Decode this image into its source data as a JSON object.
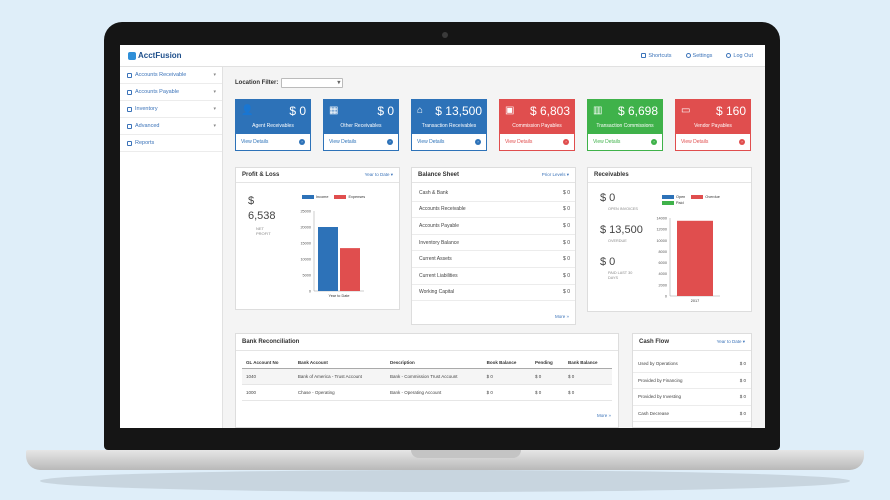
{
  "app": {
    "logo": "AcctFusion"
  },
  "topnav": [
    {
      "label": "Shortcuts",
      "icon": "shortcuts-icon"
    },
    {
      "label": "Settings",
      "icon": "gear-icon"
    },
    {
      "label": "Log Out",
      "icon": "logout-icon"
    }
  ],
  "sidebar": {
    "items": [
      {
        "label": "Accounts Receivable",
        "icon": "user-icon",
        "has_caret": true
      },
      {
        "label": "Accounts Payable",
        "icon": "building-icon",
        "has_caret": true
      },
      {
        "label": "Inventory",
        "icon": "box-icon",
        "has_caret": true
      },
      {
        "label": "Advanced",
        "icon": "document-icon",
        "has_caret": true
      },
      {
        "label": "Reports",
        "icon": "reports-icon",
        "has_caret": false
      }
    ]
  },
  "filter": {
    "label": "Location Filter:",
    "value": ""
  },
  "tiles": [
    {
      "amount": "$ 0",
      "label": "Agent Receivables",
      "link": "View Details",
      "color": "#2d72b8",
      "icon": "user-icon",
      "glyph": "👤"
    },
    {
      "amount": "$ 0",
      "label": "Other Receivables",
      "link": "View Details",
      "color": "#2d72b8",
      "icon": "grid-icon",
      "glyph": "▦"
    },
    {
      "amount": "$ 13,500",
      "label": "Transaction Receivables",
      "link": "View Details",
      "color": "#2d72b8",
      "icon": "home-icon",
      "glyph": "⌂"
    },
    {
      "amount": "$ 6,803",
      "label": "Commission Payables",
      "link": "View Details",
      "color": "#e04e4e",
      "icon": "money-icon",
      "glyph": "▣"
    },
    {
      "amount": "$ 6,698",
      "label": "Transaction Commissions",
      "link": "View Details",
      "color": "#3fb24a",
      "icon": "bank-icon",
      "glyph": "▥"
    },
    {
      "amount": "$ 160",
      "label": "Vendor Payables",
      "link": "View Details",
      "color": "#e04e4e",
      "icon": "card-icon",
      "glyph": "▭"
    }
  ],
  "profit_loss": {
    "title": "Profit & Loss",
    "period": "Year to Date ▾",
    "dollar": "$",
    "value": "6,538",
    "caption": "NET PROFIT",
    "legend": [
      {
        "name": "Income",
        "color": "#2d72b8"
      },
      {
        "name": "Expenses",
        "color": "#e04e4e"
      }
    ],
    "chart_data": {
      "type": "bar",
      "categories": [
        "Year to Date"
      ],
      "series": [
        {
          "name": "Income",
          "values": [
            20000
          ],
          "color": "#2d72b8"
        },
        {
          "name": "Expenses",
          "values": [
            13400
          ],
          "color": "#e04e4e"
        }
      ],
      "ylim": [
        0,
        25000
      ],
      "yticks": [
        "0",
        "5000",
        "10000",
        "15000",
        "20000",
        "25000"
      ]
    }
  },
  "balance_sheet": {
    "title": "Balance Sheet",
    "period": "Prior Levels ▾",
    "rows": [
      {
        "label": "Cash & Bank",
        "value": "$ 0"
      },
      {
        "label": "Accounts Receivable",
        "value": "$ 0"
      },
      {
        "label": "Accounts Payable",
        "value": "$ 0"
      },
      {
        "label": "Inventory Balance",
        "value": "$ 0"
      },
      {
        "label": "Current Assets",
        "value": "$ 0"
      },
      {
        "label": "Current Liabilities",
        "value": "$ 0"
      },
      {
        "label": "Working Capital",
        "value": "$ 0"
      }
    ],
    "more": "More »"
  },
  "receivables": {
    "title": "Receivables",
    "stats": [
      {
        "value": "$ 0",
        "caption": "OPEN INVOICES"
      },
      {
        "value": "$ 13,500",
        "caption": "OVERDUE"
      },
      {
        "value": "$ 0",
        "caption": "PAID LAST 30 DAYS"
      }
    ],
    "legend": [
      {
        "name": "Open",
        "color": "#2d72b8"
      },
      {
        "name": "Overdue",
        "color": "#e04e4e"
      },
      {
        "name": "Paid",
        "color": "#3fb24a"
      }
    ],
    "chart_data": {
      "type": "bar",
      "categories": [
        "2017"
      ],
      "series": [
        {
          "name": "Open",
          "values": [
            0
          ],
          "color": "#2d72b8"
        },
        {
          "name": "Overdue",
          "values": [
            13500
          ],
          "color": "#e04e4e"
        },
        {
          "name": "Paid",
          "values": [
            0
          ],
          "color": "#3fb24a"
        }
      ],
      "ylim": [
        0,
        14000
      ],
      "yticks": [
        "0",
        "2000",
        "4000",
        "6000",
        "8000",
        "10000",
        "12000",
        "14000"
      ]
    }
  },
  "bank_recon": {
    "title": "Bank Reconciliation",
    "columns": [
      "GL Account No",
      "Bank Account",
      "Description",
      "Book Balance",
      "Pending",
      "Bank Balance"
    ],
    "rows": [
      [
        "1040",
        "Bank of America - Trust Account",
        "Bank - Commission Trust Account",
        "$ 0",
        "$ 0",
        "$ 0"
      ],
      [
        "1000",
        "Chase - Operating",
        "Bank - Operating Account",
        "$ 0",
        "$ 0",
        "$ 0"
      ]
    ],
    "more": "More »"
  },
  "cash_flow": {
    "title": "Cash Flow",
    "period": "Year to Date ▾",
    "rows": [
      {
        "label": "Used by Operations",
        "value": "$ 0"
      },
      {
        "label": "Provided by Financing",
        "value": "$ 0"
      },
      {
        "label": "Provided by Investing",
        "value": "$ 0"
      },
      {
        "label": "Cash Decrease",
        "value": "$ 0"
      }
    ]
  }
}
